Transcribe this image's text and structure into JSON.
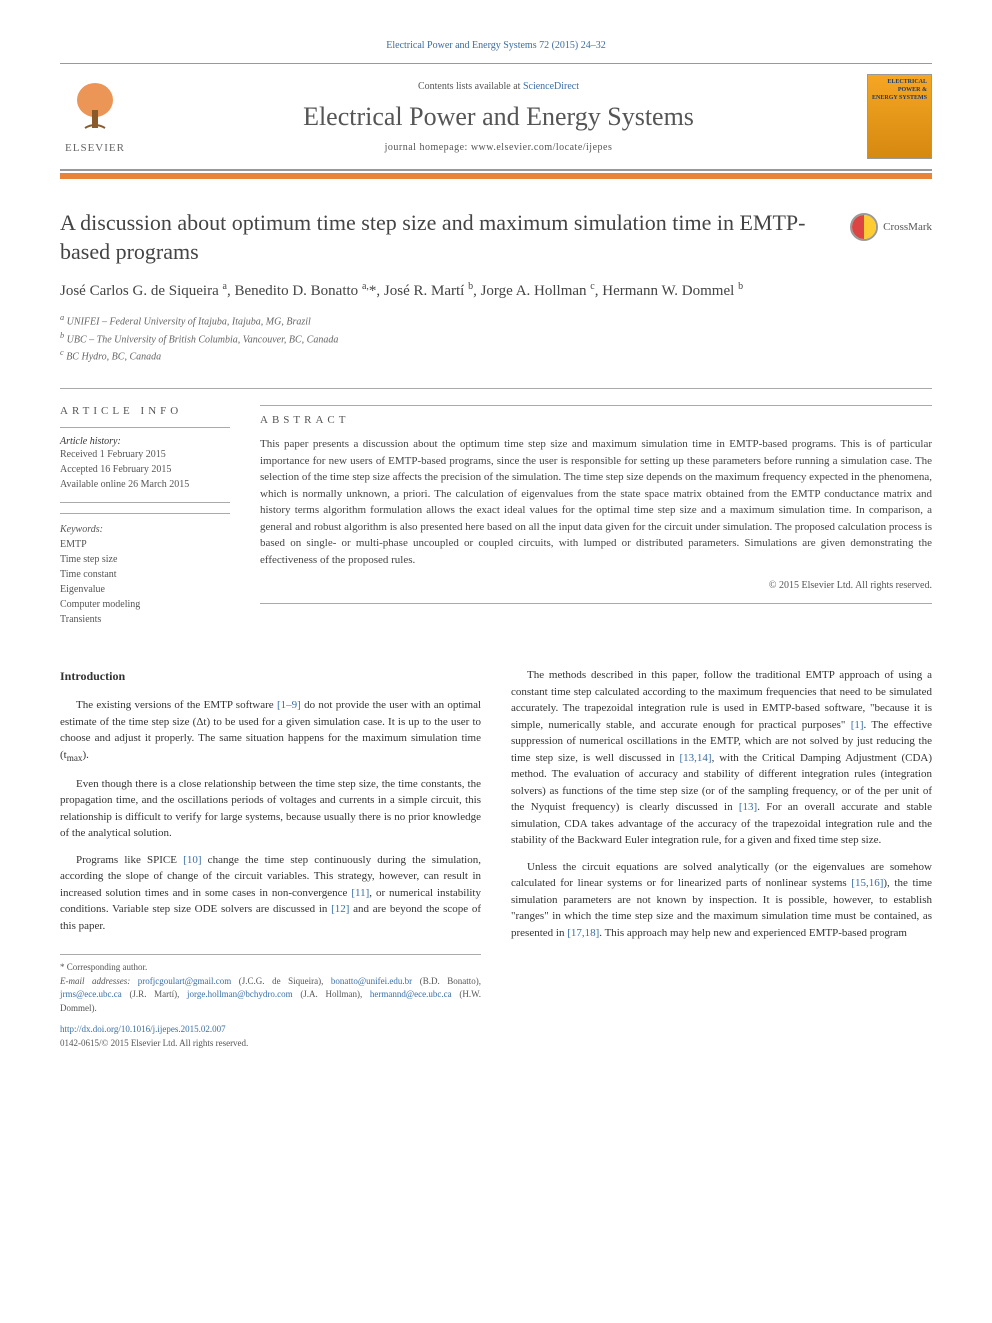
{
  "citation": "Electrical Power and Energy Systems 72 (2015) 24–32",
  "header": {
    "contents_prefix": "Contents lists available at ",
    "contents_link": "ScienceDirect",
    "journal_name": "Electrical Power and Energy Systems",
    "homepage_prefix": "journal homepage: ",
    "homepage_url": "www.elsevier.com/locate/ijepes",
    "publisher": "ELSEVIER",
    "cover_text": "ELECTRICAL POWER & ENERGY SYSTEMS"
  },
  "colors": {
    "link": "#3a6ea5",
    "orange_rule": "#e8833a",
    "cover_bg_top": "#f5a623",
    "cover_bg_bottom": "#d68910",
    "text_main": "#333333",
    "text_muted": "#555555"
  },
  "article": {
    "title": "A discussion about optimum time step size and maximum simulation time in EMTP-based programs",
    "crossmark_label": "CrossMark",
    "authors_html": "José Carlos G. de Siqueira <sup>a</sup>, Benedito D. Bonatto <sup>a,</sup>*, José R. Martí <sup>b</sup>, Jorge A. Hollman <sup>c</sup>, Hermann W. Dommel <sup>b</sup>",
    "affiliations": [
      "a UNIFEI – Federal University of Itajuba, Itajuba, MG, Brazil",
      "b UBC – The University of British Columbia, Vancouver, BC, Canada",
      "c BC Hydro, BC, Canada"
    ]
  },
  "info": {
    "heading": "ARTICLE INFO",
    "history_label": "Article history:",
    "history": [
      "Received 1 February 2015",
      "Accepted 16 February 2015",
      "Available online 26 March 2015"
    ],
    "keywords_label": "Keywords:",
    "keywords": [
      "EMTP",
      "Time step size",
      "Time constant",
      "Eigenvalue",
      "Computer modeling",
      "Transients"
    ]
  },
  "abstract": {
    "heading": "ABSTRACT",
    "text": "This paper presents a discussion about the optimum time step size and maximum simulation time in EMTP-based programs. This is of particular importance for new users of EMTP-based programs, since the user is responsible for setting up these parameters before running a simulation case. The selection of the time step size affects the precision of the simulation. The time step size depends on the maximum frequency expected in the phenomena, which is normally unknown, a priori. The calculation of eigenvalues from the state space matrix obtained from the EMTP conductance matrix and history terms algorithm formulation allows the exact ideal values for the optimal time step size and a maximum simulation time. In comparison, a general and robust algorithm is also presented here based on all the input data given for the circuit under simulation. The proposed calculation process is based on single- or multi-phase uncoupled or coupled circuits, with lumped or distributed parameters. Simulations are given demonstrating the effectiveness of the proposed rules.",
    "copyright": "© 2015 Elsevier Ltd. All rights reserved."
  },
  "body": {
    "intro_heading": "Introduction",
    "left_paragraphs": [
      "The existing versions of the EMTP software <a>[1–9]</a> do not provide the user with an optimal estimate of the time step size (Δt) to be used for a given simulation case. It is up to the user to choose and adjust it properly. The same situation happens for the maximum simulation time (t<sub>max</sub>).",
      "Even though there is a close relationship between the time step size, the time constants, the propagation time, and the oscillations periods of voltages and currents in a simple circuit, this relationship is difficult to verify for large systems, because usually there is no prior knowledge of the analytical solution.",
      "Programs like SPICE <a>[10]</a> change the time step continuously during the simulation, according the slope of change of the circuit variables. This strategy, however, can result in increased solution times and in some cases in non-convergence <a>[11]</a>, or numerical instability conditions. Variable step size ODE solvers are discussed in <a>[12]</a> and are beyond the scope of this paper."
    ],
    "right_paragraphs": [
      "The methods described in this paper, follow the traditional EMTP approach of using a constant time step calculated according to the maximum frequencies that need to be simulated accurately. The trapezoidal integration rule is used in EMTP-based software, \"because it is simple, numerically stable, and accurate enough for practical purposes\" <a>[1]</a>. The effective suppression of numerical oscillations in the EMTP, which are not solved by just reducing the time step size, is well discussed in <a>[13,14]</a>, with the Critical Damping Adjustment (CDA) method. The evaluation of accuracy and stability of different integration rules (integration solvers) as functions of the time step size (or of the sampling frequency, or of the per unit of the Nyquist frequency) is clearly discussed in <a>[13]</a>. For an overall accurate and stable simulation, CDA takes advantage of the accuracy of the trapezoidal integration rule and the stability of the Backward Euler integration rule, for a given and fixed time step size.",
      "Unless the circuit equations are solved analytically (or the eigenvalues are somehow calculated for linear systems or for linearized parts of nonlinear systems <a>[15,16]</a>), the time simulation parameters are not known by inspection. It is possible, however, to establish \"ranges\" in which the time step size and the maximum simulation time must be contained, as presented in <a>[17,18]</a>. This approach may help new and experienced EMTP-based program"
    ]
  },
  "footnote": {
    "corresponding": "* Corresponding author.",
    "emails_label": "E-mail addresses: ",
    "emails_html": "<a>profjcgoulart@gmail.com</a> (J.C.G. de Siqueira), <a>bonatto@unifei.edu.br</a> (B.D. Bonatto), <a>jrms@ece.ubc.ca</a> (J.R. Martí), <a>jorge.hollman@bchydro.com</a> (J.A. Hollman), <a>hermannd@ece.ubc.ca</a> (H.W. Dommel).",
    "doi": "http://dx.doi.org/10.1016/j.ijepes.2015.02.007",
    "issn": "0142-0615/© 2015 Elsevier Ltd. All rights reserved."
  }
}
